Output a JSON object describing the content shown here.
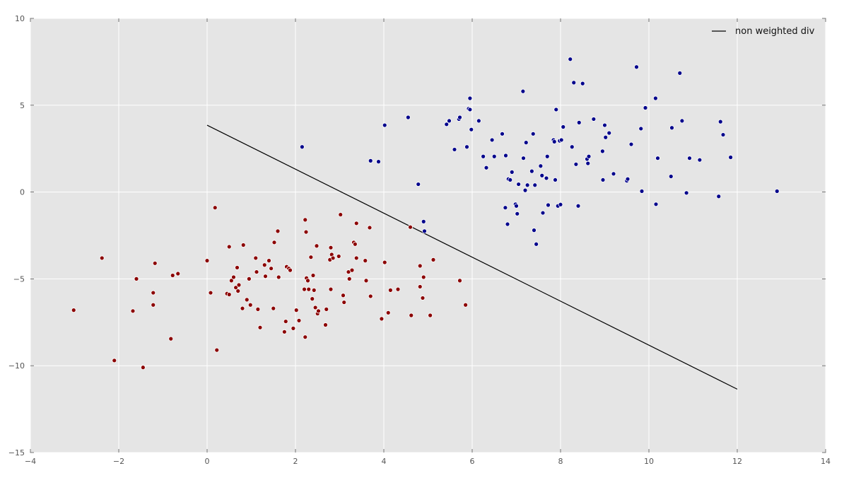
{
  "chart_data": {
    "type": "scatter",
    "xlim": [
      -4,
      14
    ],
    "ylim": [
      -15,
      10
    ],
    "xticks": [
      -4,
      -2,
      0,
      2,
      4,
      6,
      8,
      10,
      12,
      14
    ],
    "yticks": [
      -15,
      -10,
      -5,
      0,
      5,
      10
    ],
    "xtick_labels": [
      "−4",
      "−2",
      "0",
      "2",
      "4",
      "6",
      "8",
      "10",
      "12",
      "14"
    ],
    "ytick_labels": [
      "−15",
      "−10",
      "−5",
      "0",
      "5",
      "10"
    ],
    "grid": true,
    "background": "#e5e5e5",
    "legend_position": "top-right",
    "lines": [
      {
        "name": "non weighted div",
        "color": "#000000",
        "x": [
          0,
          12
        ],
        "y": [
          3.85,
          -11.35
        ]
      }
    ],
    "series": [
      {
        "color": "#8b0000",
        "points": [
          [
            -3.02,
            -6.8
          ],
          [
            -2.38,
            -3.8
          ],
          [
            -2.1,
            -9.7
          ],
          [
            -1.68,
            -6.85
          ],
          [
            -1.6,
            -5
          ],
          [
            -1.45,
            -10.1
          ],
          [
            -1.22,
            -5.8
          ],
          [
            -1.22,
            -6.5
          ],
          [
            -1.18,
            -4.1
          ],
          [
            -0.82,
            -8.45
          ],
          [
            -0.78,
            -4.8
          ],
          [
            -0.66,
            -4.7
          ],
          [
            0.0,
            -3.95
          ],
          [
            0.08,
            -5.8
          ],
          [
            0.18,
            -0.9
          ],
          [
            0.22,
            -9.1
          ],
          [
            0.45,
            -5.85
          ],
          [
            0.5,
            -5.9
          ],
          [
            0.5,
            -3.15
          ],
          [
            0.55,
            -5.1
          ],
          [
            0.6,
            -4.9
          ],
          [
            0.65,
            -5.5
          ],
          [
            0.68,
            -4.35
          ],
          [
            0.7,
            -5.7
          ],
          [
            0.72,
            -5.35
          ],
          [
            0.8,
            -6.7
          ],
          [
            0.82,
            -3.05
          ],
          [
            0.9,
            -6.2
          ],
          [
            0.95,
            -5
          ],
          [
            0.98,
            -6.5
          ],
          [
            1.1,
            -3.8
          ],
          [
            1.12,
            -4.6
          ],
          [
            1.15,
            -6.75
          ],
          [
            1.2,
            -7.8
          ],
          [
            1.3,
            -4.2
          ],
          [
            1.32,
            -4.85
          ],
          [
            1.4,
            -3.95
          ],
          [
            1.45,
            -4.4
          ],
          [
            1.5,
            -6.7
          ],
          [
            1.52,
            -2.9
          ],
          [
            1.6,
            -2.25
          ],
          [
            1.62,
            -4.9
          ],
          [
            1.75,
            -8.05
          ],
          [
            1.78,
            -7.45
          ],
          [
            1.8,
            -4.3
          ],
          [
            1.85,
            -4.4
          ],
          [
            1.88,
            -4.5
          ],
          [
            1.95,
            -7.85
          ],
          [
            2.02,
            -6.8
          ],
          [
            2.08,
            -7.4
          ],
          [
            2.2,
            -5.6
          ],
          [
            2.22,
            -1.6
          ],
          [
            2.22,
            -8.35
          ],
          [
            2.24,
            -2.3
          ],
          [
            2.25,
            -4.95
          ],
          [
            2.28,
            -5.1
          ],
          [
            2.3,
            -5.6
          ],
          [
            2.35,
            -3.75
          ],
          [
            2.38,
            -6.15
          ],
          [
            2.4,
            -4.8
          ],
          [
            2.42,
            -5.65
          ],
          [
            2.45,
            -6.65
          ],
          [
            2.48,
            -3.1
          ],
          [
            2.5,
            -7
          ],
          [
            2.52,
            -6.85
          ],
          [
            2.68,
            -7.65
          ],
          [
            2.7,
            -6.75
          ],
          [
            2.78,
            -3.9
          ],
          [
            2.8,
            -3.2
          ],
          [
            2.8,
            -5.6
          ],
          [
            2.82,
            -3.6
          ],
          [
            2.85,
            -3.8
          ],
          [
            2.98,
            -3.7
          ],
          [
            3.02,
            -1.3
          ],
          [
            3.08,
            -5.95
          ],
          [
            3.1,
            -6.35
          ],
          [
            3.2,
            -4.6
          ],
          [
            3.22,
            -5
          ],
          [
            3.28,
            -4.5
          ],
          [
            3.32,
            -2.9
          ],
          [
            3.35,
            -3
          ],
          [
            3.38,
            -3.8
          ],
          [
            3.38,
            -1.8
          ],
          [
            3.58,
            -3.95
          ],
          [
            3.6,
            -5.1
          ],
          [
            3.68,
            -2.05
          ],
          [
            3.7,
            -6
          ],
          [
            3.95,
            -7.3
          ],
          [
            4.02,
            -4.05
          ],
          [
            4.1,
            -6.95
          ],
          [
            4.15,
            -5.65
          ],
          [
            4.32,
            -5.6
          ],
          [
            4.6,
            -2.02
          ],
          [
            4.62,
            -7.1
          ],
          [
            4.82,
            -4.25
          ],
          [
            4.82,
            -5.45
          ],
          [
            4.88,
            -6.1
          ],
          [
            4.9,
            -4.9
          ],
          [
            5.05,
            -7.1
          ],
          [
            5.12,
            -3.9
          ],
          [
            5.72,
            -5.1
          ],
          [
            5.85,
            -6.5
          ]
        ]
      },
      {
        "color": "#00008b",
        "points": [
          [
            2.15,
            2.6
          ],
          [
            3.7,
            1.8
          ],
          [
            3.88,
            1.75
          ],
          [
            4.02,
            3.85
          ],
          [
            4.55,
            4.3
          ],
          [
            4.78,
            0.45
          ],
          [
            4.9,
            -1.7
          ],
          [
            4.92,
            -2.25
          ],
          [
            5.42,
            3.9
          ],
          [
            5.48,
            4.1
          ],
          [
            5.6,
            2.45
          ],
          [
            5.7,
            4.2
          ],
          [
            5.72,
            4.3
          ],
          [
            5.88,
            2.6
          ],
          [
            5.92,
            4.8
          ],
          [
            5.95,
            5.4
          ],
          [
            5.95,
            4.75
          ],
          [
            5.98,
            3.6
          ],
          [
            6.15,
            4.1
          ],
          [
            6.25,
            2.05
          ],
          [
            6.32,
            1.4
          ],
          [
            6.45,
            3
          ],
          [
            6.5,
            2.05
          ],
          [
            6.68,
            3.35
          ],
          [
            6.75,
            -0.9
          ],
          [
            6.76,
            2.1
          ],
          [
            6.8,
            -1.85
          ],
          [
            6.82,
            0.75
          ],
          [
            6.86,
            0.7
          ],
          [
            6.9,
            1.15
          ],
          [
            6.98,
            -0.7
          ],
          [
            7.0,
            -0.8
          ],
          [
            7.02,
            -1.25
          ],
          [
            7.05,
            0.45
          ],
          [
            7.15,
            5.8
          ],
          [
            7.16,
            1.95
          ],
          [
            7.2,
            0.1
          ],
          [
            7.22,
            2.85
          ],
          [
            7.25,
            0.4
          ],
          [
            7.35,
            1.2
          ],
          [
            7.38,
            3.35
          ],
          [
            7.4,
            -2.2
          ],
          [
            7.42,
            0.4
          ],
          [
            7.45,
            -3
          ],
          [
            7.55,
            1.5
          ],
          [
            7.58,
            0.95
          ],
          [
            7.6,
            -1.2
          ],
          [
            7.68,
            0.8
          ],
          [
            7.7,
            2.05
          ],
          [
            7.72,
            -0.75
          ],
          [
            7.84,
            3
          ],
          [
            7.86,
            2.9
          ],
          [
            7.88,
            0.7
          ],
          [
            7.9,
            4.75
          ],
          [
            7.94,
            -0.8
          ],
          [
            7.98,
            2.95
          ],
          [
            8.0,
            -0.72
          ],
          [
            8.02,
            3
          ],
          [
            8.06,
            3.75
          ],
          [
            8.22,
            7.65
          ],
          [
            8.26,
            2.6
          ],
          [
            8.3,
            6.3
          ],
          [
            8.35,
            1.6
          ],
          [
            8.4,
            -0.8
          ],
          [
            8.42,
            4
          ],
          [
            8.5,
            6.25
          ],
          [
            8.6,
            1.9
          ],
          [
            8.62,
            1.65
          ],
          [
            8.64,
            2.05
          ],
          [
            8.75,
            4.2
          ],
          [
            8.95,
            2.35
          ],
          [
            8.96,
            0.7
          ],
          [
            9.0,
            3.85
          ],
          [
            9.02,
            3.15
          ],
          [
            9.1,
            3.4
          ],
          [
            9.2,
            1.05
          ],
          [
            9.5,
            0.65
          ],
          [
            9.52,
            0.75
          ],
          [
            9.6,
            2.75
          ],
          [
            9.72,
            7.2
          ],
          [
            9.82,
            3.65
          ],
          [
            9.84,
            0.05
          ],
          [
            9.92,
            4.85
          ],
          [
            10.15,
            5.4
          ],
          [
            10.16,
            -0.7
          ],
          [
            10.2,
            1.95
          ],
          [
            10.5,
            0.9
          ],
          [
            10.52,
            3.7
          ],
          [
            10.7,
            6.85
          ],
          [
            10.75,
            4.1
          ],
          [
            10.85,
            -0.05
          ],
          [
            10.92,
            1.95
          ],
          [
            11.15,
            1.85
          ],
          [
            11.58,
            -0.25
          ],
          [
            11.62,
            4.05
          ],
          [
            11.68,
            3.3
          ],
          [
            11.85,
            2
          ],
          [
            12.9,
            0.05
          ]
        ]
      }
    ]
  }
}
